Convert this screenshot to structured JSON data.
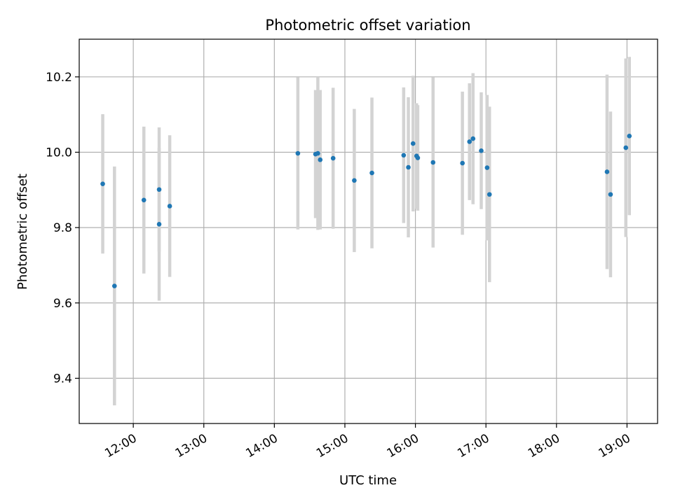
{
  "chart_data": {
    "type": "scatter",
    "title": "Photometric offset variation",
    "xlabel": "UTC time",
    "ylabel": "Photometric offset",
    "x_ticks": [
      "12:00",
      "13:00",
      "14:00",
      "15:00",
      "16:00",
      "17:00",
      "18:00",
      "19:00"
    ],
    "y_ticks": [
      "9.4",
      "9.6",
      "9.8",
      "10.0",
      "10.2"
    ],
    "xlim": [
      "11:14",
      "19:26"
    ],
    "ylim": [
      9.28,
      10.3
    ],
    "grid": true,
    "legend": "none",
    "colors": {
      "points": "#1f77b4",
      "error_bars": "#d3d3d3",
      "grid": "#b0b0b0"
    },
    "points": [
      {
        "x": "11:34",
        "y": 9.916,
        "y_err": 0.185
      },
      {
        "x": "11:44",
        "y": 9.645,
        "y_err": 0.317
      },
      {
        "x": "12:09",
        "y": 9.873,
        "y_err": 0.195
      },
      {
        "x": "12:22",
        "y": 9.901,
        "y_err": 0.165
      },
      {
        "x": "12:22",
        "y": 9.809,
        "y_err": 0.203
      },
      {
        "x": "12:31",
        "y": 9.857,
        "y_err": 0.188
      },
      {
        "x": "14:20",
        "y": 9.997,
        "y_err": 0.202
      },
      {
        "x": "14:35",
        "y": 9.995,
        "y_err": 0.17
      },
      {
        "x": "14:37",
        "y": 9.997,
        "y_err": 0.203
      },
      {
        "x": "14:39",
        "y": 9.98,
        "y_err": 0.185
      },
      {
        "x": "14:50",
        "y": 9.984,
        "y_err": 0.187
      },
      {
        "x": "15:08",
        "y": 9.925,
        "y_err": 0.19
      },
      {
        "x": "15:23",
        "y": 9.945,
        "y_err": 0.2
      },
      {
        "x": "15:50",
        "y": 9.992,
        "y_err": 0.18
      },
      {
        "x": "15:54",
        "y": 9.96,
        "y_err": 0.186
      },
      {
        "x": "15:58",
        "y": 10.023,
        "y_err": 0.18
      },
      {
        "x": "16:01",
        "y": 9.99,
        "y_err": 0.14
      },
      {
        "x": "16:02",
        "y": 9.985,
        "y_err": 0.14
      },
      {
        "x": "16:15",
        "y": 9.973,
        "y_err": 0.226
      },
      {
        "x": "16:40",
        "y": 9.971,
        "y_err": 0.19
      },
      {
        "x": "16:46",
        "y": 10.028,
        "y_err": 0.155
      },
      {
        "x": "16:49",
        "y": 10.036,
        "y_err": 0.174
      },
      {
        "x": "16:56",
        "y": 10.004,
        "y_err": 0.155
      },
      {
        "x": "17:01",
        "y": 9.959,
        "y_err": 0.193
      },
      {
        "x": "17:03",
        "y": 9.888,
        "y_err": 0.233
      },
      {
        "x": "18:43",
        "y": 9.948,
        "y_err": 0.258
      },
      {
        "x": "18:46",
        "y": 9.888,
        "y_err": 0.22
      },
      {
        "x": "18:59",
        "y": 10.012,
        "y_err": 0.237
      },
      {
        "x": "19:02",
        "y": 10.043,
        "y_err": 0.21
      }
    ]
  }
}
